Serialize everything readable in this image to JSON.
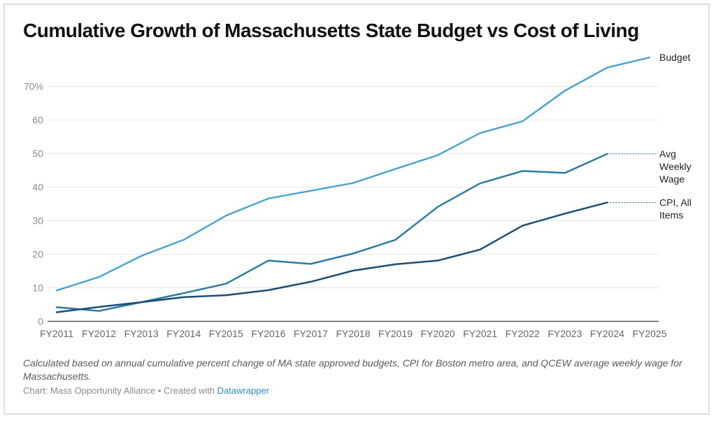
{
  "chart_data": {
    "type": "line",
    "title": "Cumulative Growth of Massachusetts State Budget vs Cost of Living",
    "xlabel": "",
    "ylabel": "",
    "ylim": [
      0,
      80
    ],
    "y_ticks": [
      0,
      10,
      20,
      30,
      40,
      50,
      60,
      70
    ],
    "y_tick_labels": [
      "0",
      "10",
      "20",
      "30",
      "40",
      "50",
      "60",
      "70%"
    ],
    "grid": true,
    "legend": "direct-labels-right",
    "categories": [
      "FY2011",
      "FY2012",
      "FY2013",
      "FY2014",
      "FY2015",
      "FY2016",
      "FY2017",
      "FY2018",
      "FY2019",
      "FY2020",
      "FY2021",
      "FY2022",
      "FY2023",
      "FY2024",
      "FY2025"
    ],
    "series": [
      {
        "name": "Budget",
        "label_lines": [
          "Budget"
        ],
        "color": "#4fa3d1",
        "values": [
          9.2,
          13.2,
          19.5,
          24.3,
          31.5,
          36.6,
          38.9,
          41.2,
          45.4,
          49.5,
          56.1,
          59.6,
          68.7,
          75.6,
          78.6
        ]
      },
      {
        "name": "Avg Weekly Wage",
        "label_lines": [
          "Avg",
          "Weekly",
          "Wage"
        ],
        "color": "#2e7aa5",
        "values": [
          4.2,
          3.1,
          5.7,
          8.4,
          11.2,
          18.1,
          17.1,
          20.2,
          24.3,
          34.1,
          41.1,
          44.8,
          44.2,
          49.9,
          null
        ]
      },
      {
        "name": "CPI, All Items",
        "label_lines": [
          "CPI, All",
          "Items"
        ],
        "color": "#1b4e74",
        "values": [
          2.7,
          4.3,
          5.7,
          7.2,
          7.8,
          9.3,
          11.8,
          15.1,
          17.0,
          18.1,
          21.4,
          28.5,
          32.1,
          35.4,
          null
        ]
      }
    ]
  },
  "notes": "Calculated based on annual cumulative percent change of MA state approved budgets, CPI for Boston metro area, and QCEW average weekly wage for Massachusetts.",
  "byline": {
    "prefix": "Chart: Mass Opportunity Alliance • Created with ",
    "link": "Datawrapper"
  },
  "colors": {
    "gridline": "#e6e6e6",
    "axis": "#555555",
    "tick_label": "#8c8c8c",
    "link": "#2d88c4"
  }
}
